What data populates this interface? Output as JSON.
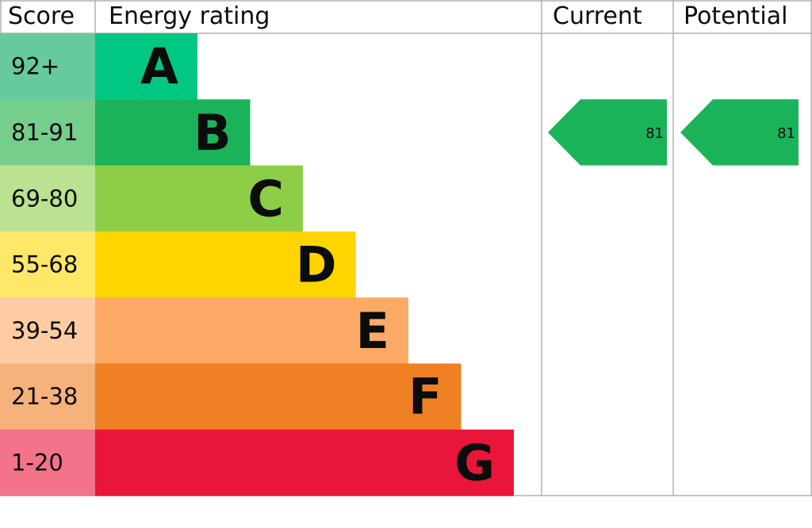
{
  "chart_data": {
    "type": "bar",
    "headers": {
      "score": "Score",
      "rating": "Energy rating",
      "current": "Current",
      "potential": "Potential"
    },
    "bands": [
      {
        "letter": "A",
        "range": "92+",
        "color": "#00c781",
        "light": "#66ca9f"
      },
      {
        "letter": "B",
        "range": "81-91",
        "color": "#1bb35a",
        "light": "#76ce8c"
      },
      {
        "letter": "C",
        "range": "69-80",
        "color": "#8dce46",
        "light": "#bbe291"
      },
      {
        "letter": "D",
        "range": "55-68",
        "color": "#ffd500",
        "light": "#ffe767"
      },
      {
        "letter": "E",
        "range": "39-54",
        "color": "#fcaa65",
        "light": "#fdcca3"
      },
      {
        "letter": "F",
        "range": "21-38",
        "color": "#ef8023",
        "light": "#f5b27b"
      },
      {
        "letter": "G",
        "range": "1-20",
        "color": "#e9153b",
        "light": "#f2738a"
      }
    ],
    "current": {
      "value": "81",
      "band": "B",
      "color": "#1bb35a"
    },
    "potential": {
      "value": "81",
      "band": "B",
      "color": "#1bb35a"
    },
    "grid_color": "#b1b4b6"
  }
}
